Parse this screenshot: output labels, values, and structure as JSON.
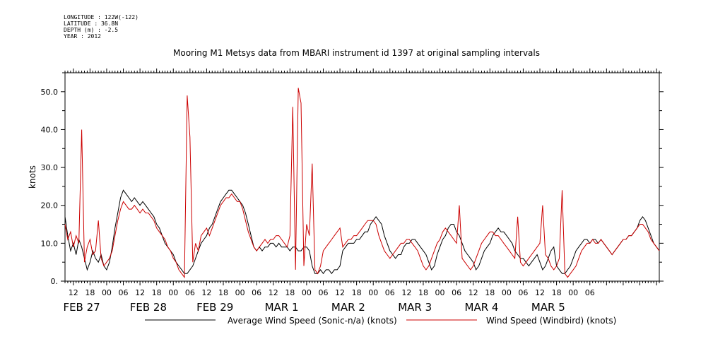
{
  "metadata": {
    "longitude": "LONGITUDE : 122W(-122)",
    "latitude": "LATITUDE : 36.8N",
    "depth": "DEPTH (m) : -2.5",
    "year": "YEAR : 2012"
  },
  "chart_data": {
    "type": "line",
    "title": "Mooring M1 Metsys data from MBARI instrument id 1397 at original sampling intervals",
    "ylabel": "knots",
    "xlabel": "",
    "ylim": [
      0,
      55
    ],
    "xlim_hours": [
      0,
      214
    ],
    "yticks": [
      "0.",
      "10.0",
      "20.0",
      "30.0",
      "40.0",
      "50.0"
    ],
    "hour_ticks": [
      "12",
      "18",
      "00",
      "06",
      "12",
      "18",
      "00",
      "06",
      "12",
      "18",
      "00",
      "06",
      "12",
      "18",
      "00",
      "06",
      "12",
      "18",
      "00",
      "06",
      "12",
      "18",
      "00",
      "06",
      "12",
      "18",
      "00",
      "06",
      "12",
      "18",
      "00",
      "06"
    ],
    "day_labels": [
      {
        "label": "FEB 27",
        "hour": 6
      },
      {
        "label": "FEB 28",
        "hour": 30
      },
      {
        "label": "FEB 29",
        "hour": 54
      },
      {
        "label": "MAR  1",
        "hour": 78
      },
      {
        "label": "MAR  2",
        "hour": 102
      },
      {
        "label": "MAR  3",
        "hour": 126
      },
      {
        "label": "MAR  4",
        "hour": 150
      },
      {
        "label": "MAR  5",
        "hour": 174
      }
    ],
    "grid": false,
    "legend_position": "bottom",
    "series": [
      {
        "name": "Average Wind Speed (Sonic-n/a) (knots)",
        "color": "#000000",
        "x": [
          0,
          1,
          2,
          3,
          4,
          5,
          6,
          7,
          8,
          9,
          10,
          11,
          12,
          13,
          14,
          15,
          16,
          17,
          18,
          19,
          20,
          21,
          22,
          23,
          24,
          25,
          26,
          27,
          28,
          29,
          30,
          31,
          32,
          33,
          34,
          35,
          36,
          37,
          38,
          39,
          40,
          41,
          42,
          43,
          44,
          45,
          46,
          47,
          48,
          49,
          50,
          51,
          52,
          53,
          54,
          55,
          56,
          57,
          58,
          59,
          60,
          61,
          62,
          63,
          64,
          65,
          66,
          67,
          68,
          69,
          70,
          71,
          72,
          73,
          74,
          75,
          76,
          77,
          78,
          79,
          80,
          81,
          82,
          83,
          84,
          85,
          86,
          87,
          88,
          89,
          90,
          91,
          92,
          93,
          94,
          95,
          96,
          97,
          98,
          99,
          100,
          101,
          102,
          103,
          104,
          105,
          106,
          107,
          108,
          109,
          110,
          111,
          112,
          113,
          114,
          115,
          116,
          117,
          118,
          119,
          120,
          121,
          122,
          123,
          124,
          125,
          126,
          127,
          128,
          129,
          130,
          131,
          132,
          133,
          134,
          135,
          136,
          137,
          138,
          139,
          140,
          141,
          142,
          143,
          144,
          145,
          146,
          147,
          148,
          149,
          150,
          151,
          152,
          153,
          154,
          155,
          156,
          157,
          158,
          159,
          160,
          161,
          162,
          163,
          164,
          165,
          166,
          167,
          168,
          169,
          170,
          171,
          172,
          173,
          174,
          175,
          176,
          177,
          178,
          179,
          180,
          181,
          182,
          183,
          184,
          185,
          186,
          187,
          188,
          189,
          190,
          191,
          192,
          193,
          194,
          195,
          196,
          197,
          198,
          199,
          200,
          201,
          202,
          203,
          204,
          205,
          206,
          207,
          208,
          209,
          210,
          211,
          212,
          213,
          214
        ],
        "y": [
          17,
          12,
          8,
          10,
          7,
          11,
          9,
          6,
          3,
          5,
          8,
          6,
          5,
          7,
          4,
          3,
          5,
          9,
          14,
          18,
          22,
          24,
          23,
          22,
          21,
          22,
          21,
          20,
          21,
          20,
          19,
          18,
          17,
          15,
          14,
          12,
          10,
          9,
          8,
          7,
          5,
          4,
          3,
          2,
          2,
          3,
          4,
          6,
          8,
          10,
          11,
          12,
          14,
          15,
          17,
          19,
          21,
          22,
          23,
          24,
          24,
          23,
          22,
          21,
          20,
          18,
          15,
          12,
          9,
          8,
          9,
          8,
          9,
          9,
          10,
          10,
          9,
          10,
          9,
          9,
          9,
          8,
          9,
          9,
          8,
          8,
          9,
          9,
          8,
          4,
          2,
          2,
          3,
          2,
          3,
          3,
          2,
          3,
          3,
          4,
          8,
          9,
          10,
          10,
          10,
          11,
          11,
          12,
          13,
          13,
          15,
          16,
          17,
          16,
          15,
          12,
          10,
          8,
          7,
          6,
          7,
          7,
          9,
          10,
          10,
          11,
          11,
          10,
          9,
          8,
          7,
          5,
          3,
          4,
          7,
          9,
          11,
          12,
          14,
          15,
          15,
          13,
          12,
          10,
          8,
          7,
          6,
          5,
          3,
          4,
          6,
          8,
          9,
          10,
          12,
          13,
          14,
          13,
          13,
          12,
          11,
          10,
          8,
          7,
          6,
          6,
          5,
          4,
          5,
          6,
          7,
          5,
          3,
          4,
          6,
          8,
          9,
          4,
          3,
          2,
          2,
          3,
          4,
          6,
          8,
          9,
          10,
          11,
          11,
          10,
          11,
          11,
          10,
          11,
          10,
          9,
          8,
          7,
          8,
          9,
          10,
          11,
          11,
          12,
          12,
          13,
          14,
          16,
          17,
          16,
          14,
          12,
          10,
          9,
          8
        ]
      },
      {
        "name": "Wind Speed (Windbird) (knots)",
        "color": "#cc0000",
        "x": [
          0,
          1,
          2,
          3,
          4,
          5,
          6,
          7,
          8,
          9,
          10,
          11,
          12,
          13,
          14,
          15,
          16,
          17,
          18,
          19,
          20,
          21,
          22,
          23,
          24,
          25,
          26,
          27,
          28,
          29,
          30,
          31,
          32,
          33,
          34,
          35,
          36,
          37,
          38,
          39,
          40,
          41,
          42,
          43,
          44,
          45,
          46,
          47,
          48,
          49,
          50,
          51,
          52,
          53,
          54,
          55,
          56,
          57,
          58,
          59,
          60,
          61,
          62,
          63,
          64,
          65,
          66,
          67,
          68,
          69,
          70,
          71,
          72,
          73,
          74,
          75,
          76,
          77,
          78,
          79,
          80,
          81,
          82,
          83,
          84,
          85,
          86,
          87,
          88,
          89,
          90,
          91,
          92,
          93,
          94,
          95,
          96,
          97,
          98,
          99,
          100,
          101,
          102,
          103,
          104,
          105,
          106,
          107,
          108,
          109,
          110,
          111,
          112,
          113,
          114,
          115,
          116,
          117,
          118,
          119,
          120,
          121,
          122,
          123,
          124,
          125,
          126,
          127,
          128,
          129,
          130,
          131,
          132,
          133,
          134,
          135,
          136,
          137,
          138,
          139,
          140,
          141,
          142,
          143,
          144,
          145,
          146,
          147,
          148,
          149,
          150,
          151,
          152,
          153,
          154,
          155,
          156,
          157,
          158,
          159,
          160,
          161,
          162,
          163,
          164,
          165,
          166,
          167,
          168,
          169,
          170,
          171,
          172,
          173,
          174,
          175,
          176,
          177,
          178,
          179,
          180,
          181,
          182,
          183,
          184,
          185,
          186,
          187,
          188,
          189,
          190,
          191,
          192,
          193,
          194,
          195,
          196,
          197,
          198,
          199,
          200,
          201,
          202,
          203,
          204,
          205,
          206,
          207,
          208,
          209,
          210,
          211,
          212,
          213,
          214
        ],
        "y": [
          15,
          11,
          13,
          9,
          12,
          10,
          40,
          5,
          9,
          11,
          7,
          8,
          16,
          6,
          4,
          5,
          6,
          8,
          12,
          16,
          19,
          21,
          20,
          19,
          19,
          20,
          19,
          18,
          19,
          18,
          18,
          17,
          16,
          14,
          13,
          12,
          11,
          9,
          8,
          6,
          5,
          3,
          2,
          1,
          49,
          38,
          5,
          10,
          8,
          12,
          13,
          14,
          12,
          14,
          16,
          18,
          20,
          21,
          22,
          22,
          23,
          22,
          21,
          21,
          19,
          16,
          13,
          11,
          9,
          8,
          9,
          10,
          11,
          10,
          11,
          11,
          12,
          12,
          11,
          10,
          9,
          12,
          46,
          3,
          51,
          47,
          4,
          15,
          12,
          31,
          3,
          2,
          4,
          8,
          9,
          10,
          11,
          12,
          13,
          14,
          9,
          10,
          11,
          11,
          12,
          12,
          13,
          14,
          15,
          16,
          16,
          16,
          15,
          12,
          10,
          8,
          7,
          6,
          7,
          8,
          9,
          10,
          10,
          11,
          11,
          10,
          9,
          8,
          6,
          4,
          3,
          4,
          6,
          8,
          10,
          11,
          13,
          14,
          13,
          12,
          11,
          10,
          20,
          6,
          5,
          4,
          3,
          4,
          6,
          8,
          10,
          11,
          12,
          13,
          13,
          12,
          12,
          11,
          10,
          9,
          8,
          7,
          6,
          17,
          5,
          4,
          5,
          6,
          7,
          8,
          9,
          10,
          20,
          7,
          6,
          4,
          3,
          4,
          6,
          24,
          2,
          1,
          2,
          3,
          4,
          6,
          8,
          9,
          10,
          10,
          11,
          10,
          10,
          11,
          10,
          9,
          8,
          7,
          8,
          9,
          10,
          11,
          11,
          12,
          12,
          13,
          14,
          15,
          15,
          14,
          13,
          11,
          10,
          9,
          8
        ]
      }
    ]
  }
}
